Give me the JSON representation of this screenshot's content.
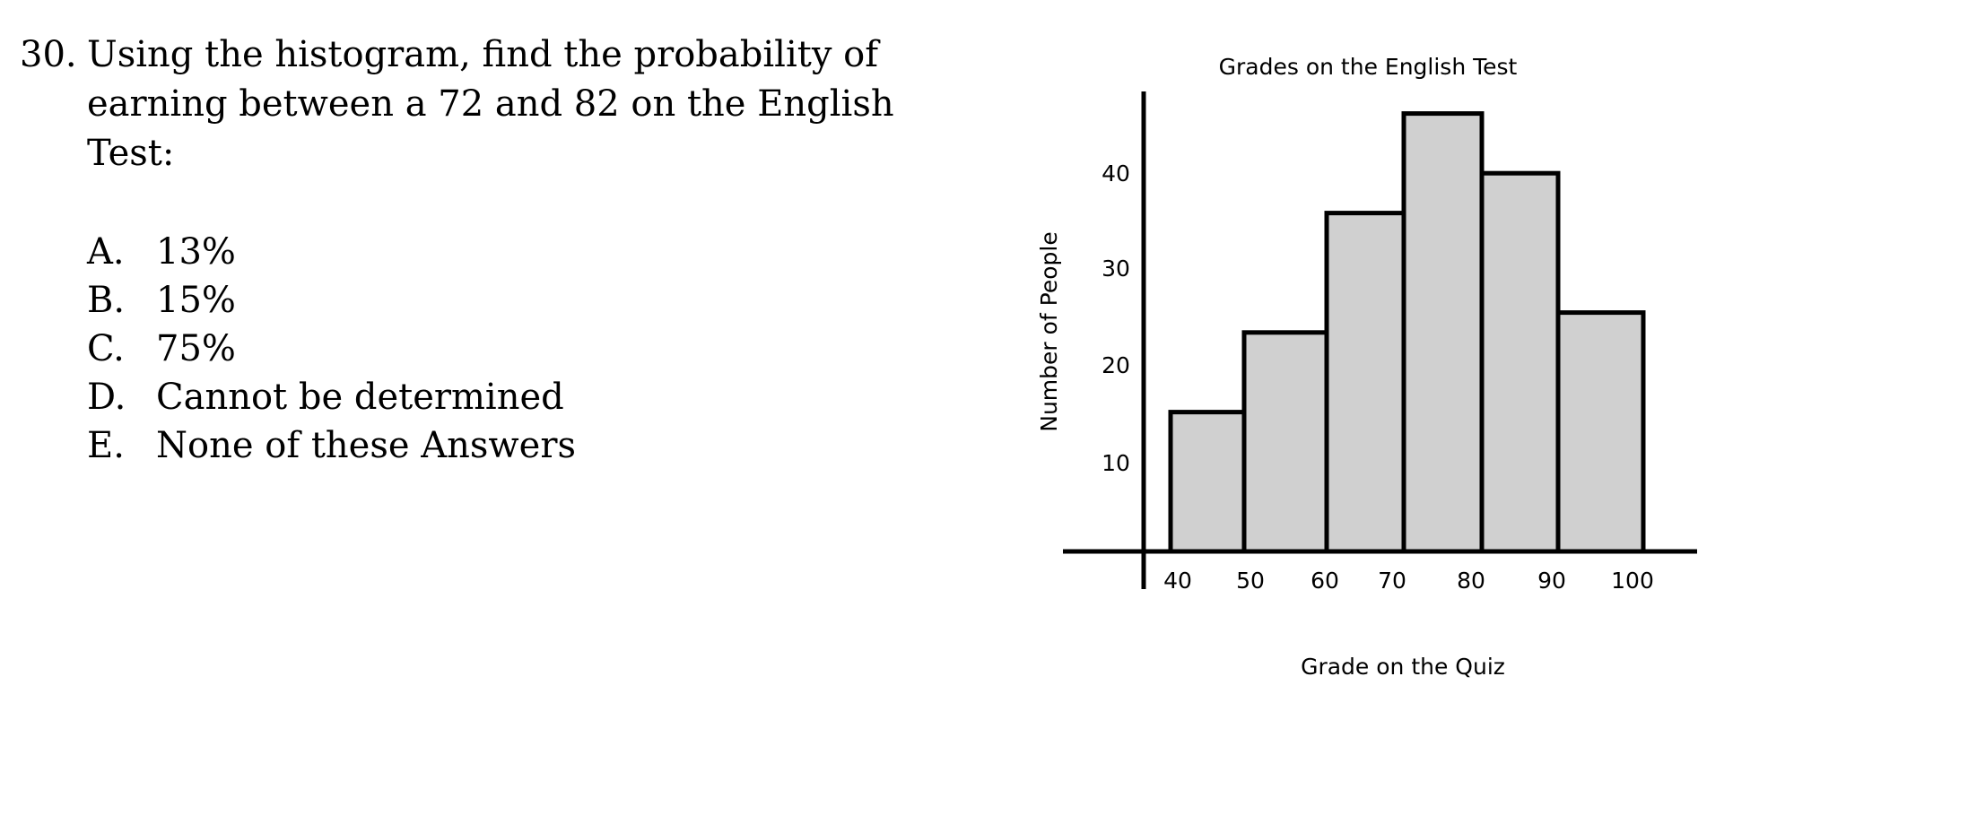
{
  "question": {
    "number": "30.",
    "text": "Using the histogram, find the probability of earning between a 72 and 82 on the English Test:"
  },
  "choices": [
    {
      "letter": "A.",
      "text": "13%"
    },
    {
      "letter": "B.",
      "text": "15%"
    },
    {
      "letter": "C.",
      "text": "75%"
    },
    {
      "letter": "D.",
      "text": "Cannot be determined"
    },
    {
      "letter": "E.",
      "text": "None of these Answers"
    }
  ],
  "chart_data": {
    "type": "bar",
    "title": "Grades on the English Test",
    "xlabel": "Grade on the Quiz",
    "ylabel": "Number of People",
    "x_tick_labels": [
      "40",
      "50",
      "60",
      "70",
      "80",
      "90",
      "100"
    ],
    "y_tick_labels": [
      "10",
      "20",
      "30",
      "40"
    ],
    "bins": [
      {
        "from": 40,
        "to": 50,
        "value": 14
      },
      {
        "from": 50,
        "to": 60,
        "value": 22
      },
      {
        "from": 60,
        "to": 70,
        "value": 34
      },
      {
        "from": 70,
        "to": 80,
        "value": 44
      },
      {
        "from": 80,
        "to": 90,
        "value": 38
      },
      {
        "from": 90,
        "to": 100,
        "value": 24
      }
    ],
    "ylim": [
      0,
      46
    ],
    "grid": false,
    "colors": {
      "bar_fill": "#d0d0d0",
      "bar_stroke": "#000000"
    }
  }
}
